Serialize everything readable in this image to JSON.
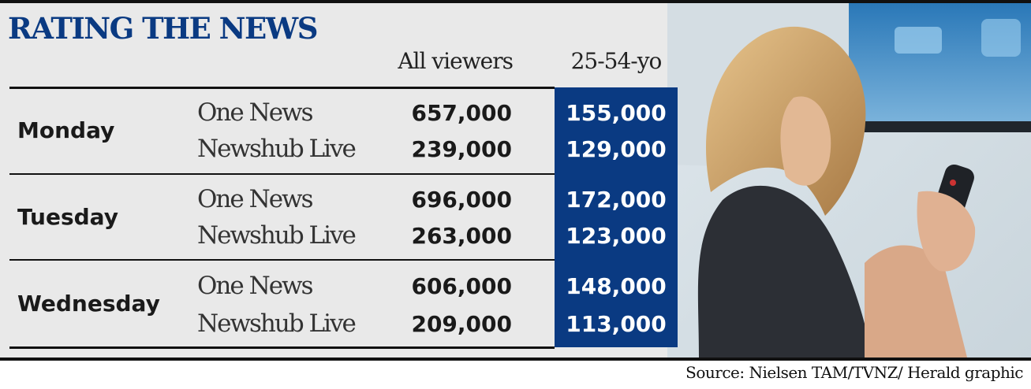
{
  "title": "RATING THE NEWS",
  "source": "Source: Nielsen TAM/TVNZ/ Herald graphic",
  "colors": {
    "accent": "#0a3a82",
    "text": "#1a1a1a",
    "panel": "#e9e9e9"
  },
  "photo": {
    "icon": "woman-holding-tv-remote-photo"
  },
  "chart_data": {
    "type": "table",
    "title": "RATING THE NEWS",
    "columns": [
      "All viewers",
      "25-54-yo"
    ],
    "rows": [
      {
        "day": "Monday",
        "programs": [
          {
            "name": "One News",
            "all_viewers": "657,000",
            "age_25_54": "155,000"
          },
          {
            "name": "Newshub Live",
            "all_viewers": "239,000",
            "age_25_54": "129,000"
          }
        ]
      },
      {
        "day": "Tuesday",
        "programs": [
          {
            "name": "One News",
            "all_viewers": "696,000",
            "age_25_54": "172,000"
          },
          {
            "name": "Newshub Live",
            "all_viewers": "263,000",
            "age_25_54": "123,000"
          }
        ]
      },
      {
        "day": "Wednesday",
        "programs": [
          {
            "name": "One News",
            "all_viewers": "606,000",
            "age_25_54": "148,000"
          },
          {
            "name": "Newshub Live",
            "all_viewers": "209,000",
            "age_25_54": "113,000"
          }
        ]
      }
    ]
  }
}
